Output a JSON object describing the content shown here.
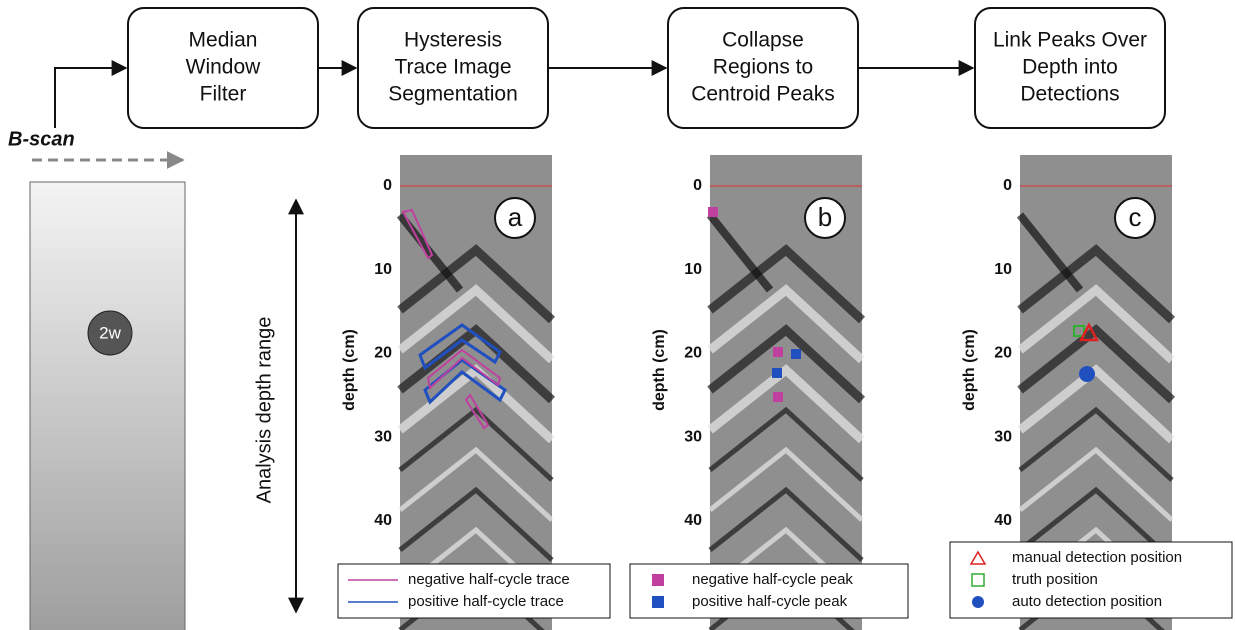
{
  "flow": {
    "input": "B-scan",
    "steps": [
      [
        "Median",
        "Window",
        "Filter"
      ],
      [
        "Hysteresis",
        "Trace Image",
        "Segmentation"
      ],
      [
        "Collapse",
        "Regions to",
        "Centroid Peaks"
      ],
      [
        "Link Peaks Over",
        "Depth into",
        "Detections"
      ]
    ]
  },
  "bscan": {
    "marker": "2w"
  },
  "range_label": "Analysis depth range",
  "panels": [
    {
      "letter": "a",
      "ylabel": "depth (cm)",
      "yticks": [
        0,
        10,
        20,
        30,
        40
      ],
      "legend": [
        "negative half-cycle trace",
        "positive half-cycle trace"
      ]
    },
    {
      "letter": "b",
      "ylabel": "depth (cm)",
      "yticks": [
        0,
        10,
        20,
        30,
        40
      ],
      "legend": [
        "negative half-cycle peak",
        "positive half-cycle peak"
      ]
    },
    {
      "letter": "c",
      "ylabel": "depth (cm)",
      "yticks": [
        0,
        10,
        20,
        30,
        40
      ],
      "legend": [
        "manual detection position",
        "truth position",
        "auto detection position"
      ]
    }
  ]
}
